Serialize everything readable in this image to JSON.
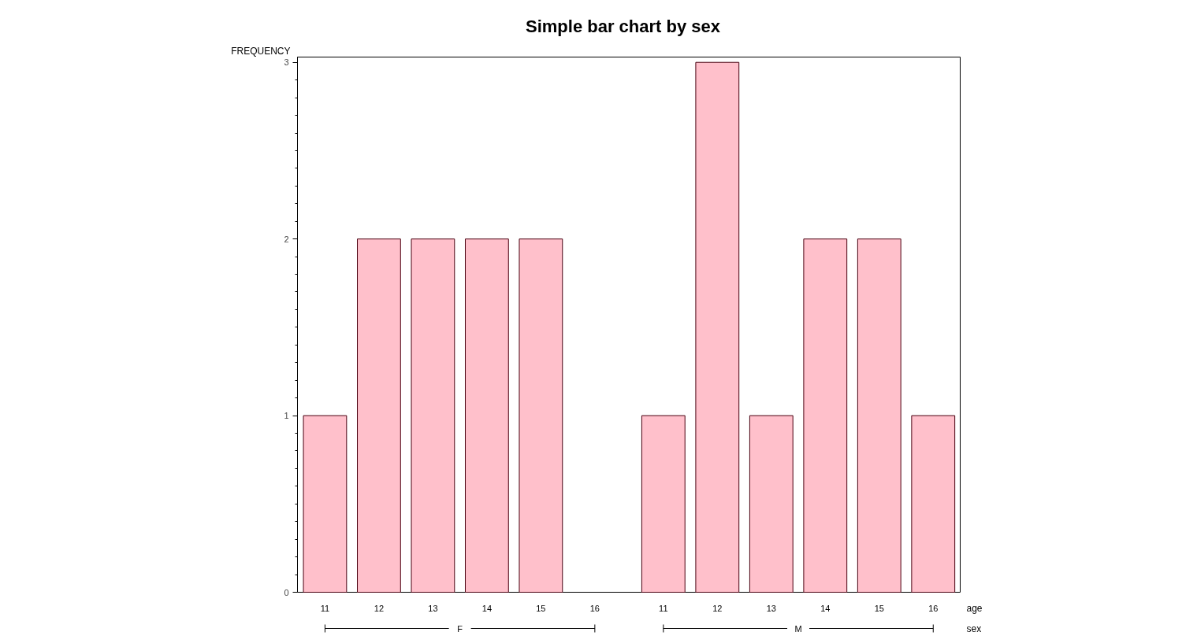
{
  "chart_data": {
    "type": "bar",
    "title": "Simple bar chart by sex",
    "xlabel": "age",
    "ylabel": "FREQUENCY",
    "categories": [
      "11",
      "12",
      "13",
      "14",
      "15",
      "16",
      "11",
      "12",
      "13",
      "14",
      "15",
      "16"
    ],
    "values": [
      1,
      2,
      2,
      2,
      2,
      0,
      1,
      3,
      1,
      2,
      2,
      1
    ],
    "color": "#ffc0cb",
    "ylim": [
      0,
      3.03
    ],
    "yticks": [
      0,
      1,
      2,
      3
    ],
    "grid": false,
    "legend": false,
    "annotations": [
      "F",
      "M",
      "sex"
    ]
  }
}
